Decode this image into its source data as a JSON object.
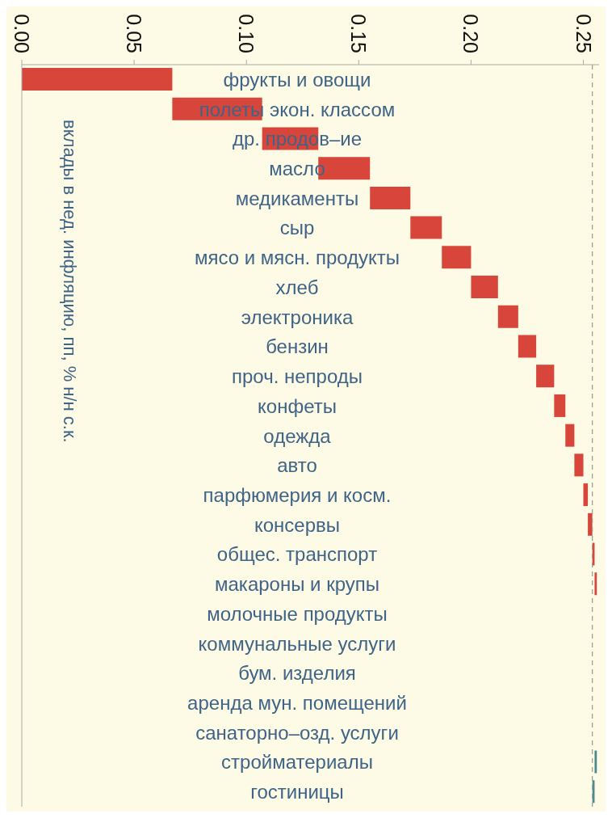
{
  "chart_data": {
    "type": "bar",
    "orientation": "horizontal",
    "ylabel": "вклады в нед. инфляцию, пп, % н/н с.к.",
    "categories": [
      "фрукты и овощи",
      "полеты экон. классом",
      "др. продов–ие",
      "масло",
      "медикаменты",
      "сыр",
      "мясо и мясн. продукты",
      "хлеб",
      "электроника",
      "бензин",
      "проч. непроды",
      "конфеты",
      "одежда",
      "авто",
      "парфюмерия и косм.",
      "консервы",
      "общес. транспорт",
      "макароны и крупы",
      "молочные продукты",
      "коммунальные услуги",
      "бум. изделия",
      "аренда мун. помещений",
      "санаторно–озд. услуги",
      "стройматериалы",
      "гостиницы"
    ],
    "values": [
      0.067,
      0.04,
      0.025,
      0.023,
      0.018,
      0.014,
      0.013,
      0.012,
      0.009,
      0.008,
      0.008,
      0.005,
      0.004,
      0.004,
      0.002,
      0.002,
      0.001,
      0.001,
      null,
      null,
      null,
      null,
      null,
      -0.001,
      -0.001
    ],
    "base": [
      0,
      0.067,
      0.107,
      0.132,
      0.155,
      0.173,
      0.187,
      0.2,
      0.212,
      0.221,
      0.229,
      0.237,
      0.242,
      0.246,
      0.25,
      0.252,
      0.254,
      0.255,
      null,
      null,
      null,
      null,
      null,
      0.256,
      0.255
    ],
    "colors": [
      "#d8453a",
      "#d8453a",
      "#d8453a",
      "#d8453a",
      "#d8453a",
      "#d8453a",
      "#d8453a",
      "#d8453a",
      "#d8453a",
      "#d8453a",
      "#d8453a",
      "#d8453a",
      "#d8453a",
      "#d8453a",
      "#d8453a",
      "#d8453a",
      "#d8453a",
      "#d8453a",
      "#d8453a",
      "#d8453a",
      "#d8453a",
      "#d8453a",
      "#d8453a",
      "#4a8a8c",
      "#4a8a8c"
    ],
    "xlim": [
      0,
      0.257
    ],
    "xticks": [
      {
        "value": 0,
        "label": "0.00"
      },
      {
        "value": 0.05,
        "label": "0.05"
      },
      {
        "value": 0.1,
        "label": "0.10"
      },
      {
        "value": 0.15,
        "label": "0.15"
      },
      {
        "value": 0.2,
        "label": "0.20"
      },
      {
        "value": 0.25,
        "label": "0.25"
      }
    ],
    "ref_lines": [
      {
        "axis": "x",
        "value": 0.254,
        "label": null,
        "color": "#999999",
        "line_style": "dashed"
      }
    ]
  }
}
